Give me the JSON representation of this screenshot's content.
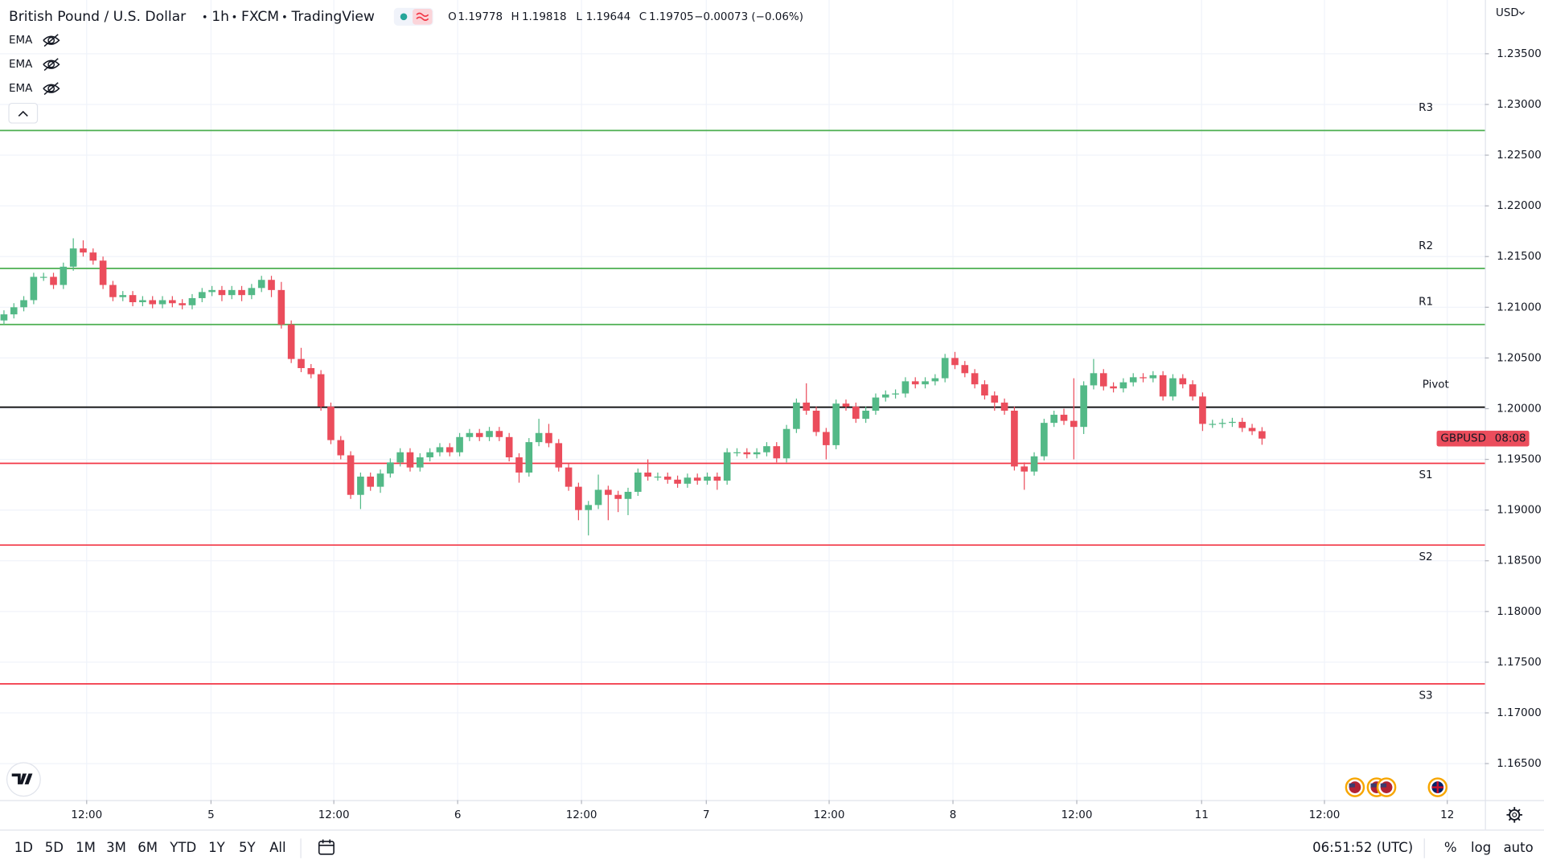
{
  "ui": {
    "symbol": "British Pound / U.S. Dollar",
    "interval": "1h",
    "exchange": "FXCM",
    "source": "TradingView",
    "ohlc_labels": [
      "O",
      "H",
      "L",
      "C"
    ],
    "ohlc_values": [
      "1.19778",
      "1.19818",
      "1.19644",
      "1.19705"
    ],
    "change": "−0.00073 (−0.06%)",
    "indicators": [
      "EMA",
      "EMA",
      "EMA"
    ],
    "currency": "USD",
    "ranges": [
      "1D",
      "5D",
      "1M",
      "3M",
      "6M",
      "YTD",
      "1Y",
      "5Y",
      "All"
    ],
    "clock": "06:51:52 (UTC)",
    "options": [
      "%",
      "log",
      "auto"
    ]
  },
  "chart_data": {
    "type": "candlestick",
    "up_color": "#53b987",
    "down_color": "#eb4d5c",
    "grid": true,
    "price_tag": {
      "symbol": "GBPUSD",
      "countdown": "08:08"
    },
    "xlim": [
      -0.4,
      149.5
    ],
    "xticks": [
      {
        "value": 8.35,
        "label": "12:00"
      },
      {
        "value": 20.9,
        "label": "5"
      },
      {
        "value": 33.3,
        "label": "12:00"
      },
      {
        "value": 45.8,
        "label": "6"
      },
      {
        "value": 58.3,
        "label": "12:00"
      },
      {
        "value": 70.9,
        "label": "7"
      },
      {
        "value": 83.3,
        "label": "12:00"
      },
      {
        "value": 95.8,
        "label": "8"
      },
      {
        "value": 108.3,
        "label": "12:00"
      },
      {
        "value": 120.9,
        "label": "11"
      },
      {
        "value": 133.3,
        "label": "12:00"
      },
      {
        "value": 145.7,
        "label": "12"
      }
    ],
    "ylim": [
      1.1614,
      1.2403
    ],
    "yticks": [
      {
        "value": 1.165,
        "label": "1.16500"
      },
      {
        "value": 1.17,
        "label": "1.17000"
      },
      {
        "value": 1.175,
        "label": "1.17500"
      },
      {
        "value": 1.18,
        "label": "1.18000"
      },
      {
        "value": 1.185,
        "label": "1.18500"
      },
      {
        "value": 1.19,
        "label": "1.19000"
      },
      {
        "value": 1.195,
        "label": "1.19500"
      },
      {
        "value": 1.2,
        "label": "1.20000"
      },
      {
        "value": 1.205,
        "label": "1.20500"
      },
      {
        "value": 1.21,
        "label": "1.21000"
      },
      {
        "value": 1.215,
        "label": "1.21500"
      },
      {
        "value": 1.22,
        "label": "1.22000"
      },
      {
        "value": 1.225,
        "label": "1.22500"
      },
      {
        "value": 1.23,
        "label": "1.23000"
      },
      {
        "value": 1.235,
        "label": "1.23500"
      }
    ],
    "levels": [
      {
        "name": "R3",
        "value": 1.22743,
        "color": "#4caf50"
      },
      {
        "name": "R2",
        "value": 1.21383,
        "color": "#4caf50"
      },
      {
        "name": "R1",
        "value": 1.2083,
        "color": "#4caf50"
      },
      {
        "name": "Pivot",
        "value": 1.20015,
        "color": "#000000"
      },
      {
        "name": "S1",
        "value": 1.19461,
        "color": "#f23645"
      },
      {
        "name": "S2",
        "value": 1.18655,
        "color": "#f23645"
      },
      {
        "name": "S3",
        "value": 1.17286,
        "color": "#f23645"
      }
    ],
    "open": [
      1.2087,
      1.2093,
      1.21,
      1.2107,
      1.213,
      1.213,
      1.2122,
      1.214,
      1.2158,
      1.2154,
      1.2146,
      1.2122,
      1.211,
      1.2112,
      1.2105,
      1.2107,
      1.2103,
      1.2107,
      1.2104,
      1.2102,
      1.2109,
      1.2115,
      1.2117,
      1.2112,
      1.2117,
      1.2112,
      1.2119,
      1.2127,
      1.2117,
      1.2083,
      1.2049,
      1.204,
      1.2034,
      1.2002,
      1.1969,
      1.1954,
      1.1915,
      1.1933,
      1.1923,
      1.1936,
      1.1947,
      1.1957,
      1.1942,
      1.1952,
      1.1957,
      1.1962,
      1.1957,
      1.1972,
      1.1976,
      1.1972,
      1.1978,
      1.1972,
      1.1952,
      1.1937,
      1.1967,
      1.1976,
      1.1966,
      1.1942,
      1.1923,
      1.19,
      1.1905,
      1.192,
      1.1915,
      1.1911,
      1.1918,
      1.1937,
      1.1933,
      1.1933,
      1.193,
      1.1926,
      1.1932,
      1.1929,
      1.1933,
      1.1929,
      1.1957,
      1.1957,
      1.1955,
      1.1957,
      1.1963,
      1.1951,
      1.198,
      1.2006,
      1.1998,
      1.1977,
      1.1964,
      1.2005,
      1.2002,
      1.199,
      1.1998,
      1.2011,
      1.2014,
      1.2015,
      1.2027,
      1.2024,
      1.2027,
      1.203,
      1.205,
      1.2043,
      1.2035,
      1.2024,
      1.2013,
      1.2006,
      1.1998,
      1.1943,
      1.1938,
      1.1953,
      1.1986,
      1.1994,
      1.1988,
      1.1982,
      1.2023,
      1.2035,
      1.2022,
      1.202,
      1.2026,
      1.2031,
      1.203,
      1.2033,
      1.2012,
      1.203,
      1.2024,
      1.2012,
      1.1985,
      1.1985,
      1.1986,
      1.1987,
      1.1981,
      1.19778
    ],
    "high": [
      1.2097,
      1.2104,
      1.2111,
      1.2134,
      1.2134,
      1.2134,
      1.2144,
      1.2168,
      1.2166,
      1.2158,
      1.215,
      1.2126,
      1.2116,
      1.2116,
      1.2111,
      1.2111,
      1.2111,
      1.2111,
      1.2108,
      1.2113,
      1.2119,
      1.2121,
      1.2121,
      1.2121,
      1.2121,
      1.2123,
      1.2131,
      1.2131,
      1.2125,
      1.2087,
      1.206,
      1.2044,
      1.2038,
      1.2006,
      1.1973,
      1.1958,
      1.1937,
      1.1937,
      1.194,
      1.1951,
      1.1961,
      1.1961,
      1.1956,
      1.1961,
      1.1966,
      1.1966,
      1.1976,
      1.198,
      1.198,
      1.1982,
      1.1982,
      1.1976,
      1.1956,
      1.1971,
      1.199,
      1.1985,
      1.197,
      1.1946,
      1.1927,
      1.1909,
      1.1935,
      1.1924,
      1.1919,
      1.1922,
      1.1941,
      1.195,
      1.1937,
      1.1937,
      1.1934,
      1.1936,
      1.1936,
      1.1937,
      1.1937,
      1.1961,
      1.1961,
      1.1961,
      1.1961,
      1.1967,
      1.1967,
      1.1984,
      1.201,
      1.2025,
      1.2002,
      1.1981,
      1.2009,
      1.2009,
      1.2006,
      1.2002,
      1.2015,
      1.2018,
      1.2019,
      1.2031,
      1.2031,
      1.2031,
      1.2034,
      1.2054,
      1.2056,
      1.2047,
      1.2039,
      1.2028,
      1.2017,
      1.201,
      1.2002,
      1.1947,
      1.1957,
      1.199,
      1.1998,
      1.2,
      1.203,
      1.2027,
      1.2049,
      1.2039,
      1.2026,
      1.203,
      1.2035,
      1.2035,
      1.2037,
      1.2037,
      1.2034,
      1.2034,
      1.2028,
      1.2016,
      1.1989,
      1.199,
      1.1991,
      1.1991,
      1.1985,
      1.19818
    ],
    "low": [
      1.2083,
      1.2089,
      1.2096,
      1.2103,
      1.2126,
      1.2118,
      1.2118,
      1.2136,
      1.215,
      1.2142,
      1.2118,
      1.2106,
      1.2106,
      1.2101,
      1.2101,
      1.2099,
      1.2099,
      1.21,
      1.2098,
      1.2098,
      1.2105,
      1.2111,
      1.2106,
      1.2108,
      1.2106,
      1.2108,
      1.2115,
      1.211,
      1.2079,
      1.2045,
      1.2036,
      1.203,
      1.1998,
      1.1965,
      1.195,
      1.1911,
      1.1901,
      1.1919,
      1.1917,
      1.1932,
      1.1943,
      1.1938,
      1.1938,
      1.1948,
      1.1953,
      1.1953,
      1.1953,
      1.1968,
      1.1968,
      1.1968,
      1.1968,
      1.1948,
      1.1927,
      1.1933,
      1.1963,
      1.1962,
      1.1938,
      1.1919,
      1.189,
      1.1875,
      1.1901,
      1.189,
      1.1898,
      1.1895,
      1.1914,
      1.1929,
      1.1929,
      1.1926,
      1.1922,
      1.1922,
      1.1925,
      1.1925,
      1.192,
      1.1925,
      1.1953,
      1.1951,
      1.1951,
      1.1953,
      1.1947,
      1.1947,
      1.1976,
      1.1994,
      1.1973,
      1.195,
      1.196,
      1.1998,
      1.1986,
      1.1986,
      1.1994,
      1.2007,
      1.201,
      1.2011,
      1.202,
      1.202,
      1.2023,
      1.2026,
      1.2039,
      1.2031,
      1.202,
      1.2009,
      1.1998,
      1.1994,
      1.1939,
      1.192,
      1.1934,
      1.1949,
      1.1982,
      1.1984,
      1.195,
      1.1975,
      1.2019,
      1.2018,
      1.2016,
      1.2016,
      1.2022,
      1.2026,
      1.2026,
      1.2008,
      1.2008,
      1.202,
      1.2008,
      1.1978,
      1.1981,
      1.1981,
      1.1982,
      1.1977,
      1.1974,
      1.19644
    ],
    "close": [
      1.2093,
      1.21,
      1.2107,
      1.213,
      1.213,
      1.2122,
      1.214,
      1.2158,
      1.2154,
      1.2146,
      1.2122,
      1.211,
      1.2112,
      1.2105,
      1.2107,
      1.2103,
      1.2107,
      1.2104,
      1.2102,
      1.2109,
      1.2115,
      1.2117,
      1.2112,
      1.2117,
      1.2112,
      1.2119,
      1.2127,
      1.2117,
      1.2083,
      1.2049,
      1.204,
      1.2034,
      1.2002,
      1.1969,
      1.1954,
      1.1915,
      1.1933,
      1.1923,
      1.1936,
      1.1947,
      1.1957,
      1.1942,
      1.1952,
      1.1957,
      1.1962,
      1.1957,
      1.1972,
      1.1976,
      1.1972,
      1.1978,
      1.1972,
      1.1952,
      1.1937,
      1.1967,
      1.1976,
      1.1966,
      1.1942,
      1.1923,
      1.19,
      1.1905,
      1.192,
      1.1915,
      1.1911,
      1.1918,
      1.1937,
      1.1933,
      1.1933,
      1.193,
      1.1926,
      1.1932,
      1.1929,
      1.1933,
      1.1929,
      1.1957,
      1.1957,
      1.1955,
      1.1957,
      1.1963,
      1.1951,
      1.198,
      1.2006,
      1.1998,
      1.1977,
      1.1964,
      1.2005,
      1.2002,
      1.199,
      1.1998,
      1.2011,
      1.2014,
      1.2015,
      1.2027,
      1.2024,
      1.2027,
      1.203,
      1.205,
      1.2043,
      1.2035,
      1.2024,
      1.2013,
      1.2006,
      1.1998,
      1.1943,
      1.1938,
      1.1953,
      1.1986,
      1.1994,
      1.1988,
      1.1982,
      1.2023,
      1.2035,
      1.2022,
      1.202,
      1.2026,
      1.2031,
      1.203,
      1.2033,
      1.2012,
      1.203,
      1.2024,
      1.2012,
      1.1985,
      1.1985,
      1.1986,
      1.1987,
      1.1981,
      1.19778,
      1.19705
    ]
  }
}
